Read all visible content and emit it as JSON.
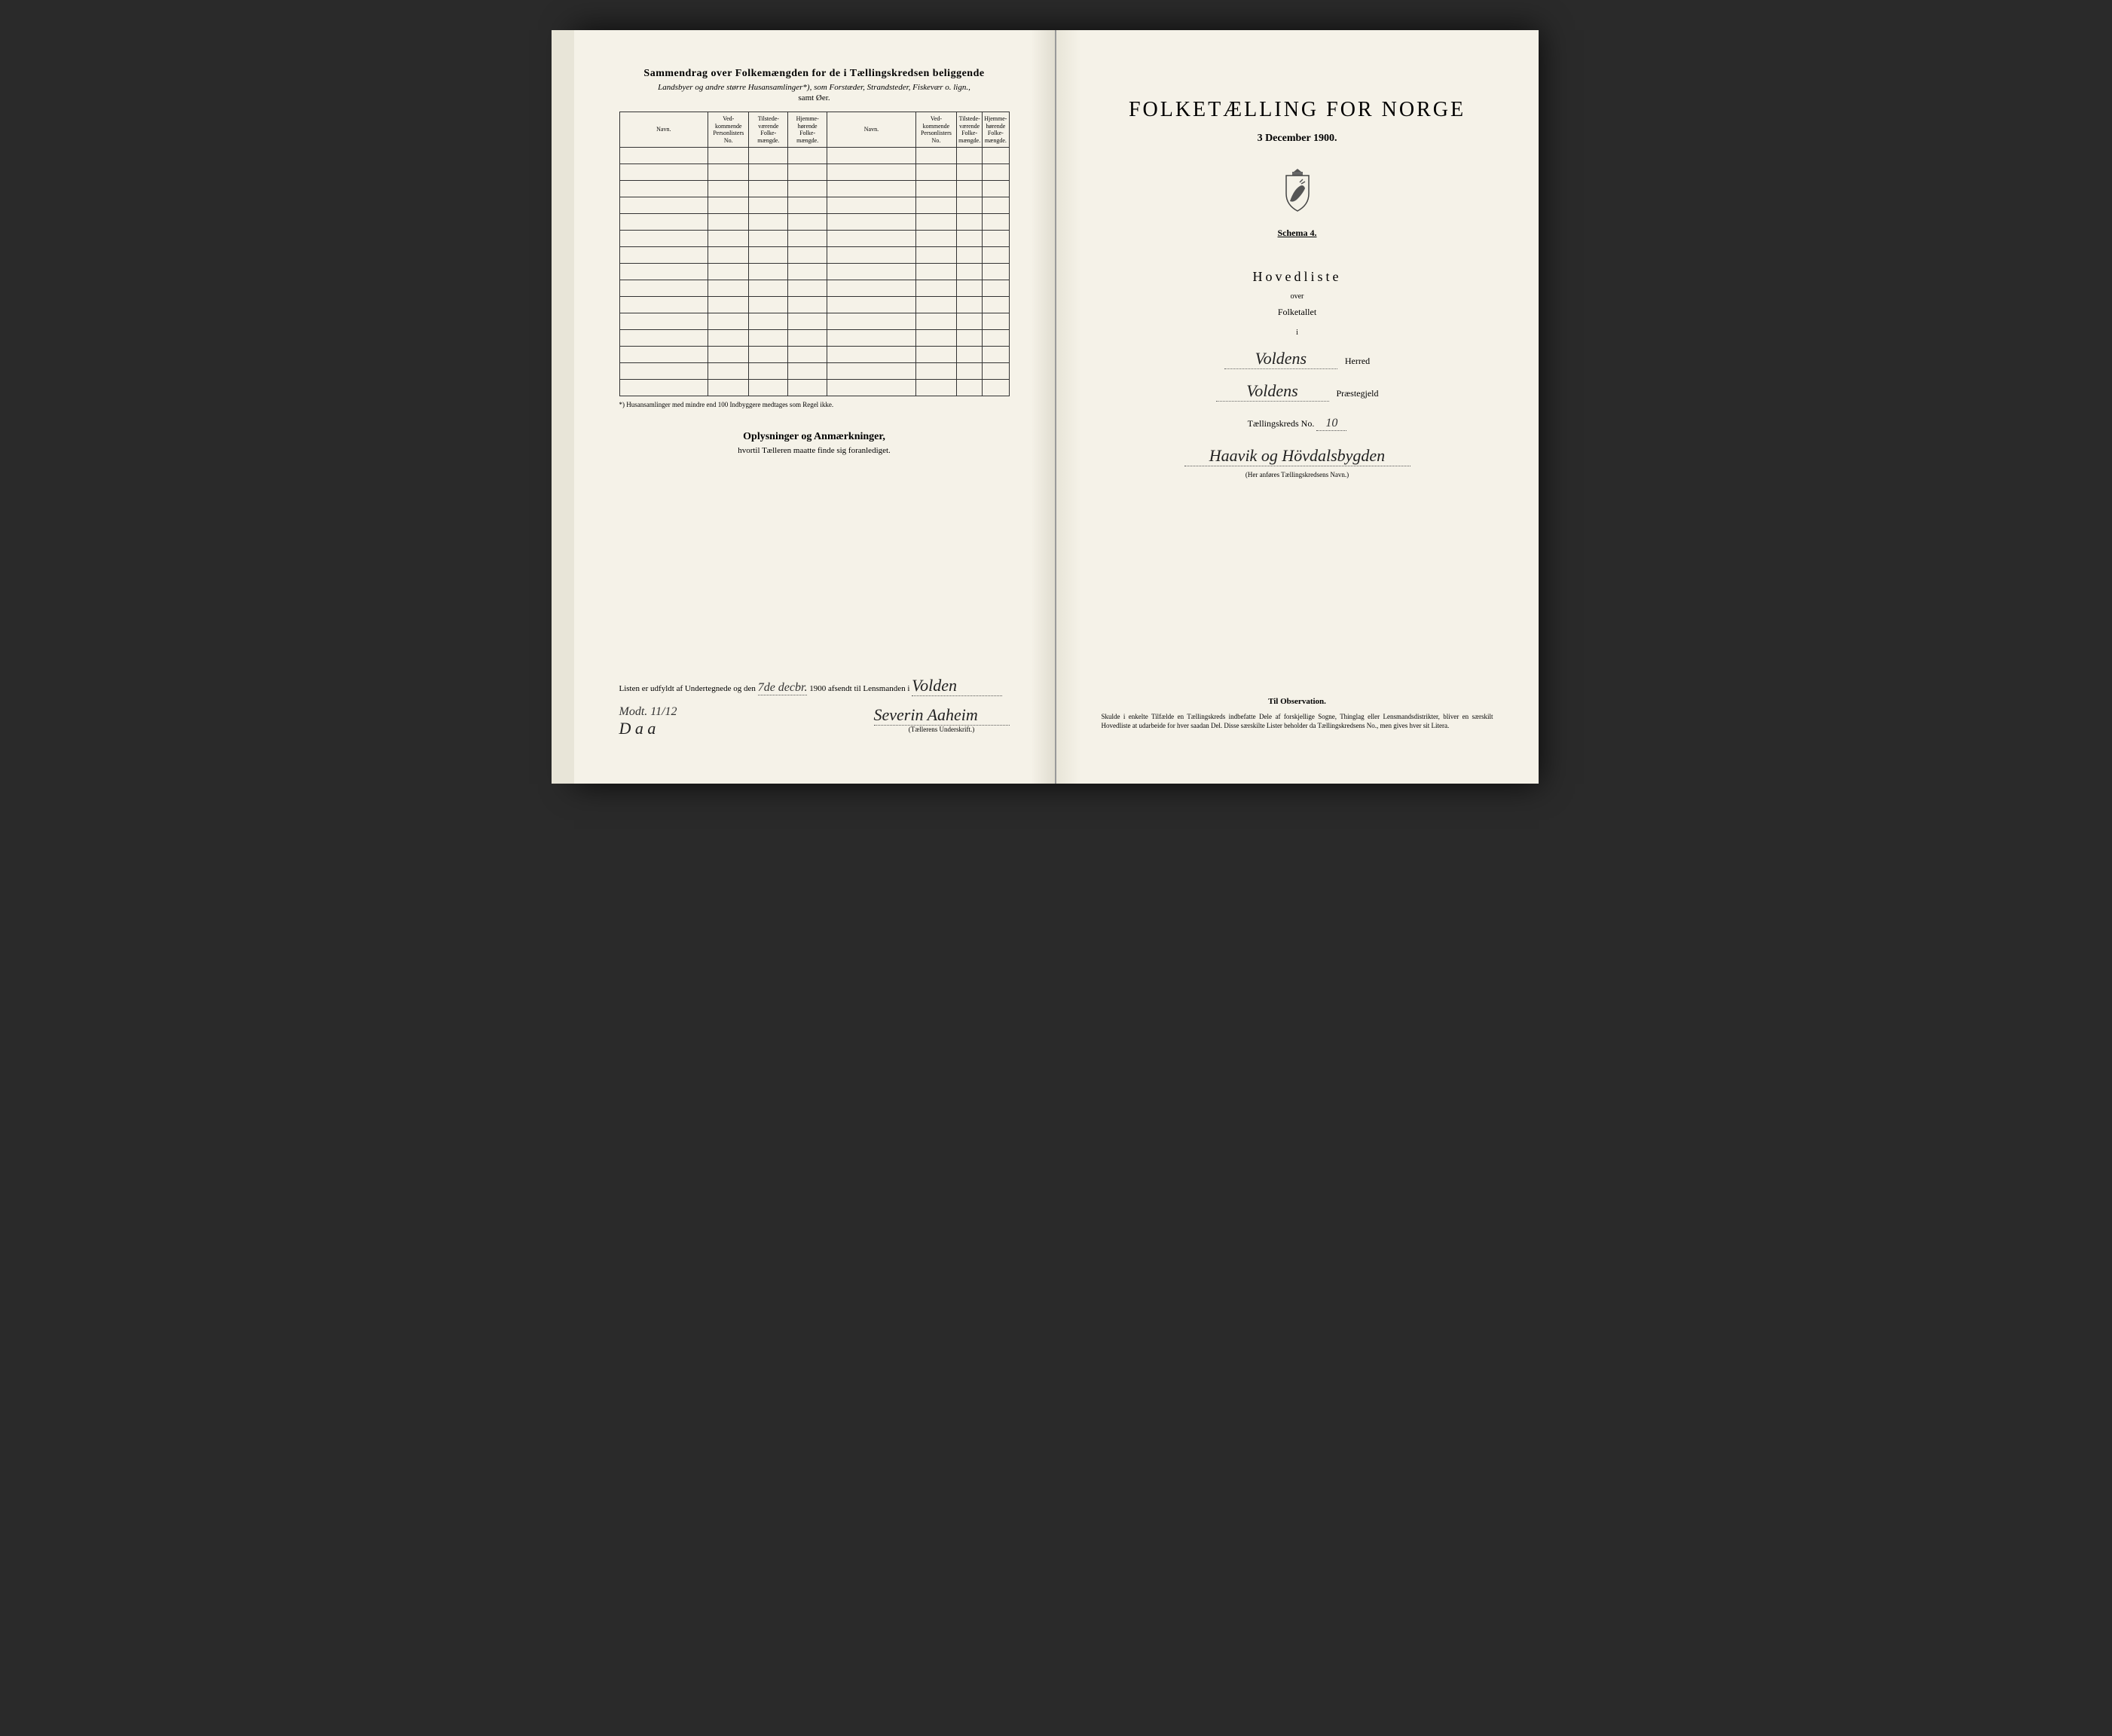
{
  "left_page": {
    "header_title": "Sammendrag over Folkemængden for de i Tællingskredsen beliggende",
    "header_subtitle": "Landsbyer og andre større Husansamlinger*), som Forstæder, Strandsteder, Fiskevær o. lign.,",
    "header_subtitle2": "samt Øer.",
    "table_headers": {
      "navn": "Navn.",
      "vedkommende": "Ved-kommende Personlisters No.",
      "tilstede": "Tilstede-værende Folke-mængde.",
      "hjemme": "Hjemme-hørende Folke-mængde."
    },
    "footnote": "*) Husansamlinger med mindre end 100 Indbyggere medtages som Regel ikke.",
    "mid_title": "Oplysninger og Anmærkninger,",
    "mid_subtitle": "hvortil Tælleren maatte finde sig foranlediget.",
    "bottom_text_prefix": "Listen er udfyldt af Undertegnede og den",
    "bottom_date_hand": "7de decbr.",
    "bottom_year": "1900",
    "bottom_text_mid": "afsendt til Lensmanden i",
    "bottom_place_hand": "Volden",
    "bottom_note_hand": "Modt. 11/12",
    "bottom_initials": "D a a",
    "signature_hand": "Severin Aaheim",
    "signature_label": "(Tællerens Underskrift.)"
  },
  "right_page": {
    "main_title": "FOLKETÆLLING FOR NORGE",
    "date_line": "3 December 1900.",
    "schema": "Schema 4.",
    "hovedliste": "Hovedliste",
    "over": "over",
    "folketallet": "Folketallet",
    "i": "i",
    "herred_hand": "Voldens",
    "herred_label": "Herred",
    "praestegjeld_hand": "Voldens",
    "praestegjeld_label": "Præstegjeld",
    "kreds_prefix": "Tællingskreds No.",
    "kreds_no_hand": "10",
    "kreds_name_hand": "Haavik og Hövdalsbygden",
    "kreds_note": "(Her anføres Tællingskredsens Navn.)",
    "obs_title": "Til Observation.",
    "obs_text": "Skulde i enkelte Tilfælde en Tællingskreds indbefatte Dele af forskjellige Sogne, Thinglag eller Lensmandsdistrikter, bliver en særskilt Hovedliste at udarbeide for hver saadan Del. Disse særskilte Lister beholder da Tællingskredsens No., men gives hver sit Litera."
  },
  "colors": {
    "page_bg": "#f5f2e8",
    "ink": "#333333",
    "border": "#333333"
  },
  "table_rows": 15
}
